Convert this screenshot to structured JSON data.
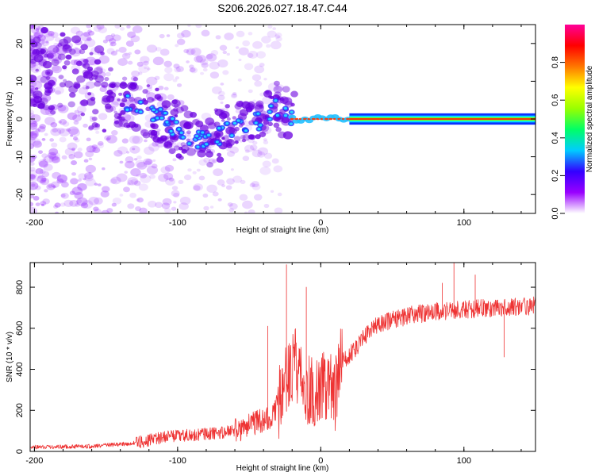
{
  "title": "S206.2026.027.18.47.C44",
  "colors": {
    "signal": "#ee3333",
    "frame": "#000000"
  },
  "chart_data": [
    {
      "type": "heatmap",
      "xlabel": "Height of straight line (km)",
      "ylabel": "Frequency (Hz)",
      "xlim": [
        -203,
        150
      ],
      "ylim": [
        -25,
        25
      ],
      "xticks": [
        -200,
        -100,
        0,
        100
      ],
      "xtick_labels": [
        "-200",
        "-100",
        "0",
        "100"
      ],
      "yticks": [
        -20,
        -10,
        0,
        10,
        20
      ],
      "ytick_labels": [
        "-20",
        "-10",
        "0",
        "10",
        "20"
      ],
      "ridge": [
        [
          -200,
          14
        ],
        [
          -175,
          11
        ],
        [
          -150,
          7
        ],
        [
          -125,
          3
        ],
        [
          -110,
          0
        ],
        [
          -100,
          -3
        ],
        [
          -90,
          -5
        ],
        [
          -80,
          -6
        ],
        [
          -70,
          -4
        ],
        [
          -55,
          -2
        ],
        [
          -40,
          0
        ],
        [
          -30,
          3
        ],
        [
          -20,
          0
        ],
        [
          0,
          0
        ],
        [
          150,
          0
        ]
      ],
      "colorbar": {
        "label": "Normalized spectral amplitude",
        "range": [
          0,
          1
        ],
        "ticks": [
          0.0,
          0.2,
          0.4,
          0.6,
          0.8
        ],
        "tick_labels": [
          "0.0",
          "0.2",
          "0.4",
          "0.6",
          "0.8"
        ],
        "stops": [
          "#ffffff",
          "#9900ff",
          "#3300ff",
          "#00ccff",
          "#00ff66",
          "#99ff00",
          "#ffff00",
          "#ff7700",
          "#ff0000",
          "#ff0099"
        ]
      }
    },
    {
      "type": "line",
      "xlabel": "Height of straight line (km)",
      "ylabel": "SNR (10 * v/v)",
      "xlim": [
        -203,
        150
      ],
      "ylim": [
        0,
        920
      ],
      "xticks": [
        -200,
        -100,
        0,
        100
      ],
      "xtick_labels": [
        "-200",
        "-100",
        "0",
        "100"
      ],
      "yticks": [
        0,
        200,
        400,
        600,
        800
      ],
      "ytick_labels": [
        "0",
        "200",
        "400",
        "600",
        "800"
      ],
      "trend": [
        [
          -203,
          20
        ],
        [
          -160,
          25
        ],
        [
          -130,
          40
        ],
        [
          -110,
          70
        ],
        [
          -90,
          80
        ],
        [
          -70,
          90
        ],
        [
          -55,
          110
        ],
        [
          -45,
          140
        ],
        [
          -35,
          170
        ],
        [
          -28,
          250
        ],
        [
          -23,
          380
        ],
        [
          -18,
          430
        ],
        [
          -12,
          330
        ],
        [
          -5,
          280
        ],
        [
          0,
          300
        ],
        [
          5,
          330
        ],
        [
          10,
          270
        ],
        [
          13,
          430
        ],
        [
          20,
          470
        ],
        [
          30,
          550
        ],
        [
          40,
          620
        ],
        [
          60,
          660
        ],
        [
          80,
          680
        ],
        [
          100,
          690
        ],
        [
          120,
          700
        ],
        [
          150,
          710
        ]
      ],
      "spikes": [
        [
          -24,
          910
        ],
        [
          -10,
          800
        ],
        [
          -37,
          610
        ],
        [
          93,
          920
        ],
        [
          85,
          820
        ],
        [
          108,
          860
        ],
        [
          128,
          460
        ]
      ]
    }
  ]
}
